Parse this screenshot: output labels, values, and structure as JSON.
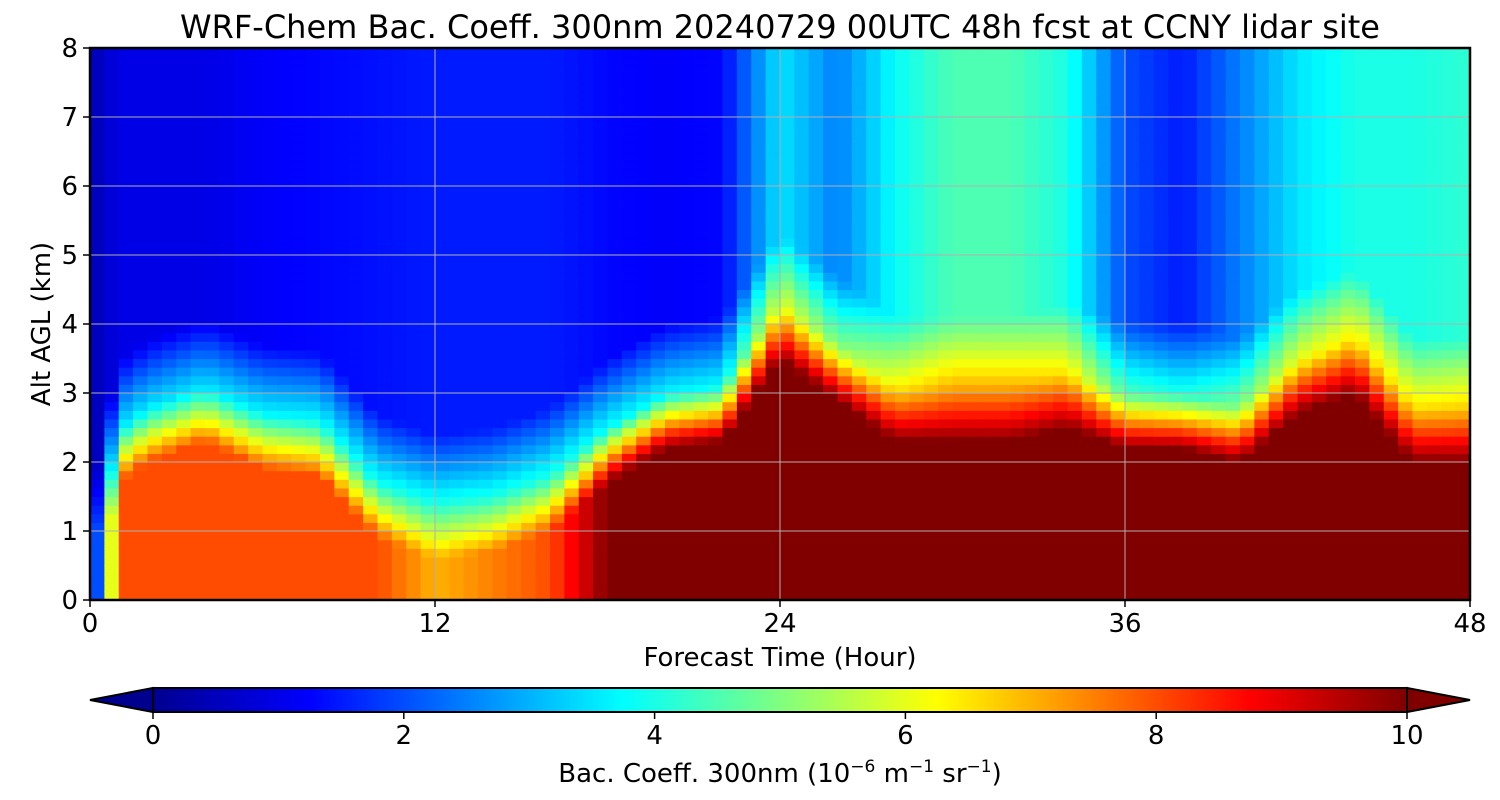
{
  "chart_data": {
    "type": "heatmap",
    "title": "WRF-Chem Bac. Coeff. 300nm  20240729 00UTC 48h fcst at CCNY lidar site",
    "xlabel": "Forecast Time (Hour)",
    "ylabel": "Alt AGL (km)",
    "xlim": [
      0,
      48
    ],
    "ylim": [
      0,
      8
    ],
    "x_ticks": [
      0,
      12,
      24,
      36,
      48
    ],
    "y_ticks": [
      0,
      1,
      2,
      3,
      4,
      5,
      6,
      7,
      8
    ],
    "grid": true,
    "colorscale": "jet",
    "colorbar": {
      "label_main": "Bac. Coeff. 300nm  (10",
      "label_exp1": "−6",
      "label_mid": " m",
      "label_exp2": "−1",
      "label_mid2": " sr",
      "label_exp3": "−1",
      "label_end": ")",
      "range": [
        0,
        10
      ],
      "ticks": [
        0,
        2,
        4,
        6,
        8,
        10
      ],
      "extend": "both",
      "orientation": "horizontal"
    },
    "time_hours": [
      0,
      1,
      2,
      4,
      6,
      8,
      10,
      12,
      14,
      16,
      18,
      20,
      22,
      24,
      26,
      28,
      30,
      32,
      34,
      36,
      38,
      40,
      42,
      44,
      46,
      48
    ],
    "boundary_layer_top_km": [
      0.0,
      2.0,
      2.3,
      2.6,
      2.2,
      2.1,
      1.2,
      0.9,
      1.0,
      1.3,
      2.0,
      2.5,
      2.6,
      3.8,
      3.2,
      2.6,
      2.6,
      2.6,
      2.8,
      2.5,
      2.5,
      2.3,
      3.0,
      3.3,
      2.3,
      2.3
    ],
    "surface_layer_value": [
      0.0,
      8.0,
      8.0,
      8.0,
      8.0,
      8.0,
      8.0,
      7.0,
      7.5,
      8.0,
      10.0,
      10.0,
      10.0,
      10.0,
      10.0,
      10.0,
      10.0,
      10.0,
      10.0,
      10.0,
      10.0,
      10.0,
      10.0,
      10.0,
      10.0,
      10.0
    ],
    "free_troposphere_value": [
      0.5,
      1.0,
      1.0,
      1.0,
      1.2,
      1.3,
      1.4,
      1.5,
      1.5,
      1.5,
      1.3,
      1.2,
      1.3,
      3.5,
      2.5,
      3.8,
      4.5,
      4.5,
      4.0,
      2.0,
      1.5,
      2.5,
      3.5,
      4.0,
      4.0,
      4.2
    ]
  }
}
